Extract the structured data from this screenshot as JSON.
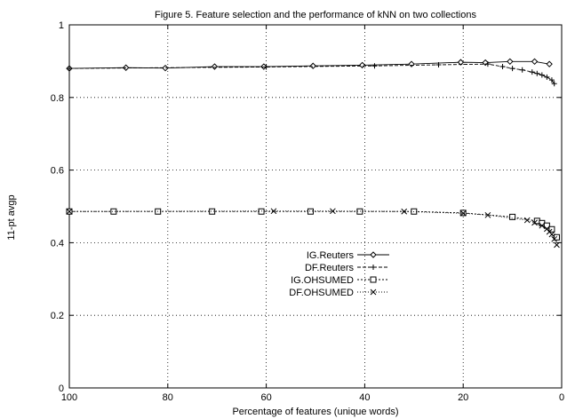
{
  "chart_data": {
    "type": "line",
    "title": "Figure 5. Feature selection and the performance of kNN on two collections",
    "xlabel": "Percentage of features (unique words)",
    "ylabel": "11-pt avgp",
    "xlim": [
      100,
      0
    ],
    "ylim": [
      0,
      1
    ],
    "xticks": [
      "100",
      "80",
      "60",
      "40",
      "20",
      "0"
    ],
    "yticks": [
      "0",
      "0.2",
      "0.4",
      "0.6",
      "0.8",
      "1"
    ],
    "grid": true,
    "legend_position": "center",
    "series": [
      {
        "name": "IG.Reuters",
        "marker": "diamond",
        "dash": "solid",
        "x": [
          100,
          88.5,
          80.5,
          70.5,
          60.5,
          50.5,
          40.5,
          30.5,
          20.5,
          15.5,
          10.5,
          5.5,
          2.5
        ],
        "y": [
          0.88,
          0.882,
          0.881,
          0.885,
          0.885,
          0.887,
          0.889,
          0.892,
          0.897,
          0.896,
          0.899,
          0.899,
          0.892
        ]
      },
      {
        "name": "DF.Reuters",
        "marker": "plus",
        "dash": "dash",
        "x": [
          100,
          60,
          38,
          25,
          15,
          12,
          10,
          8,
          6,
          5,
          4,
          3,
          2,
          1.5
        ],
        "y": [
          0.88,
          0.884,
          0.887,
          0.89,
          0.892,
          0.885,
          0.88,
          0.876,
          0.87,
          0.866,
          0.862,
          0.856,
          0.848,
          0.838
        ]
      },
      {
        "name": "IG.OHSUMED",
        "marker": "square",
        "dash": "dense-dash",
        "x": [
          100,
          91,
          82,
          71,
          61,
          51,
          41,
          30,
          20,
          10,
          5,
          4,
          3,
          2,
          1
        ],
        "y": [
          0.486,
          0.486,
          0.486,
          0.486,
          0.486,
          0.486,
          0.486,
          0.486,
          0.482,
          0.471,
          0.46,
          0.454,
          0.447,
          0.437,
          0.415
        ]
      },
      {
        "name": "DF.OHSUMED",
        "marker": "cross",
        "dash": "dotted",
        "x": [
          100,
          58.5,
          46.5,
          32,
          20,
          15,
          7,
          5.5,
          4,
          3,
          2.5,
          2,
          1.5,
          1
        ],
        "y": [
          0.486,
          0.487,
          0.487,
          0.486,
          0.481,
          0.476,
          0.462,
          0.455,
          0.447,
          0.438,
          0.43,
          0.423,
          0.41,
          0.394
        ]
      }
    ]
  }
}
